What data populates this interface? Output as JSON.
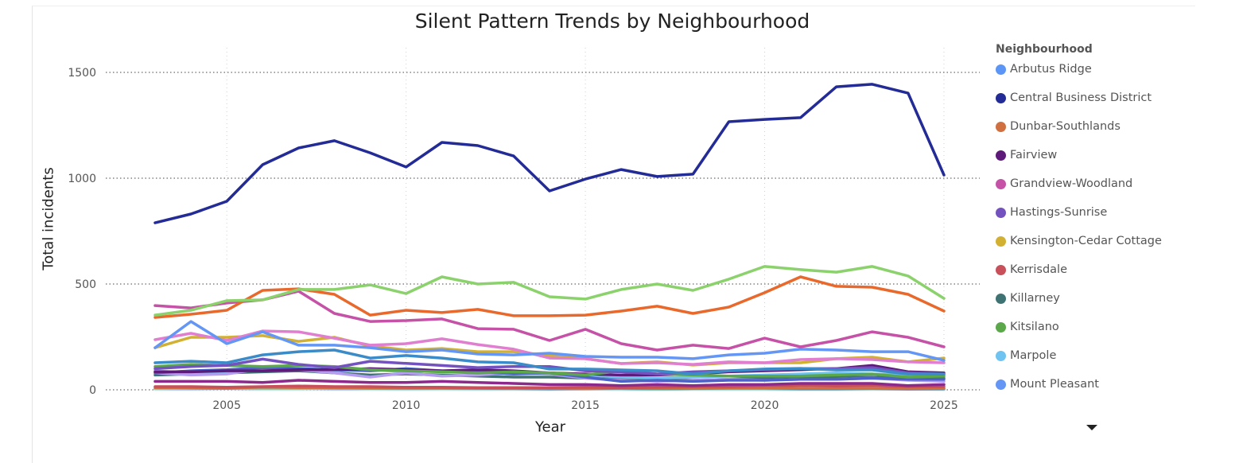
{
  "chart_data": {
    "type": "line",
    "title": "Silent Pattern Trends by Neighbourhood",
    "xlabel": "Year",
    "ylabel": "Total incidents",
    "xlim": [
      2003,
      2025
    ],
    "ylim": [
      0,
      1500
    ],
    "x_ticks": [
      "2005",
      "2010",
      "2015",
      "2020",
      "2025"
    ],
    "y_ticks": [
      "0",
      "500",
      "1000",
      "1500"
    ],
    "grid": true,
    "legend_title": "Neighbourhood",
    "legend_position": "right",
    "x": [
      2003,
      2004,
      2005,
      2006,
      2007,
      2008,
      2009,
      2010,
      2011,
      2012,
      2013,
      2014,
      2015,
      2016,
      2017,
      2018,
      2019,
      2020,
      2021,
      2022,
      2023,
      2024,
      2025
    ],
    "series": [
      {
        "name": "Arbutus Ridge",
        "color": "#5b95f5",
        "values": [
          5,
          5,
          6,
          5,
          6,
          5,
          5,
          4,
          5,
          4,
          4,
          3,
          4,
          4,
          3,
          4,
          4,
          4,
          3,
          3,
          4,
          3,
          3
        ]
      },
      {
        "name": "Central Business District",
        "color": "#232b96",
        "values": [
          789,
          831,
          891,
          1064,
          1143,
          1177,
          1120,
          1053,
          1169,
          1154,
          1105,
          940,
          996,
          1041,
          1008,
          1019,
          1267,
          1278,
          1286,
          1432,
          1444,
          1402,
          1015
        ]
      },
      {
        "name": "Dunbar-Southlands",
        "color": "#d07040",
        "values": [
          10,
          10,
          8,
          12,
          10,
          10,
          8,
          8,
          8,
          7,
          6,
          6,
          5,
          7,
          6,
          6,
          8,
          8,
          6,
          6,
          6,
          5,
          6
        ]
      },
      {
        "name": "Fairview",
        "color": "#5e1a78",
        "values": [
          85,
          85,
          90,
          90,
          95,
          95,
          100,
          95,
          90,
          95,
          90,
          80,
          75,
          70,
          70,
          75,
          85,
          90,
          95,
          100,
          115,
          85,
          80
        ]
      },
      {
        "name": "Grandview-Woodland",
        "color": "#c552a6",
        "values": [
          398,
          387,
          410,
          425,
          466,
          361,
          323,
          327,
          335,
          289,
          286,
          233,
          286,
          218,
          188,
          211,
          195,
          244,
          203,
          233,
          274,
          248,
          203
        ]
      },
      {
        "name": "Hastings-Sunrise",
        "color": "#7352c0",
        "values": [
          100,
          110,
          115,
          145,
          120,
          105,
          135,
          125,
          115,
          105,
          110,
          110,
          90,
          85,
          75,
          85,
          90,
          95,
          100,
          100,
          105,
          80,
          75
        ]
      },
      {
        "name": "Kensington-Cedar Cottage",
        "color": "#d2b031",
        "values": [
          199,
          248,
          248,
          256,
          229,
          248,
          207,
          188,
          195,
          180,
          180,
          162,
          147,
          124,
          132,
          117,
          128,
          128,
          128,
          147,
          154,
          132,
          150
        ]
      },
      {
        "name": "Kerrisdale",
        "color": "#c8505a",
        "values": [
          15,
          15,
          12,
          15,
          18,
          15,
          15,
          12,
          12,
          10,
          10,
          10,
          12,
          10,
          12,
          15,
          15,
          20,
          20,
          18,
          20,
          15,
          15
        ]
      },
      {
        "name": "Killarney",
        "color": "#3f7373",
        "values": [
          70,
          75,
          80,
          85,
          90,
          80,
          70,
          75,
          70,
          65,
          60,
          60,
          55,
          50,
          50,
          45,
          50,
          55,
          55,
          60,
          60,
          55,
          55
        ]
      },
      {
        "name": "Kitsilano",
        "color": "#5aa84a",
        "values": [
          110,
          120,
          115,
          110,
          115,
          110,
          95,
          90,
          85,
          80,
          85,
          80,
          70,
          90,
          75,
          70,
          65,
          65,
          65,
          70,
          75,
          60,
          65
        ]
      },
      {
        "name": "Marpole",
        "color": "#6ec3f0",
        "values": [
          90,
          80,
          85,
          95,
          100,
          90,
          95,
          85,
          90,
          85,
          80,
          80,
          70,
          60,
          55,
          60,
          65,
          70,
          75,
          80,
          75,
          70,
          70
        ]
      },
      {
        "name": "Mount Pleasant",
        "color": "#6496f5",
        "values": [
          199,
          323,
          218,
          274,
          211,
          211,
          199,
          180,
          188,
          169,
          165,
          173,
          158,
          154,
          154,
          147,
          165,
          173,
          192,
          188,
          180,
          180,
          139
        ]
      },
      {
        "color": "#8bd16c",
        "values": [
          353,
          376,
          421,
          425,
          474,
          474,
          496,
          455,
          534,
          500,
          508,
          440,
          429,
          474,
          500,
          470,
          523,
          583,
          568,
          556,
          583,
          538,
          432
        ]
      },
      {
        "color": "#e8692b",
        "values": [
          342,
          357,
          376,
          470,
          477,
          451,
          353,
          376,
          365,
          380,
          350,
          350,
          353,
          372,
          395,
          361,
          391,
          459,
          534,
          489,
          485,
          451,
          372
        ]
      },
      {
        "color": "#e07fcf",
        "values": [
          237,
          267,
          233,
          278,
          274,
          244,
          211,
          218,
          241,
          214,
          192,
          150,
          147,
          124,
          128,
          120,
          132,
          128,
          143,
          147,
          143,
          132,
          128
        ]
      },
      {
        "color": "#3b8bc8",
        "values": [
          128,
          135,
          128,
          165,
          180,
          188,
          150,
          162,
          150,
          132,
          128,
          98,
          98,
          94,
          90,
          75,
          90,
          98,
          101,
          94,
          94,
          75,
          75
        ]
      },
      {
        "color": "#b49cf0",
        "values": [
          80,
          70,
          75,
          100,
          95,
          80,
          60,
          80,
          65,
          70,
          80,
          75,
          55,
          45,
          40,
          45,
          50,
          45,
          50,
          50,
          55,
          45,
          40
        ]
      },
      {
        "color": "#4b63c8",
        "values": [
          80,
          90,
          95,
          105,
          100,
          95,
          90,
          100,
          90,
          85,
          75,
          80,
          60,
          40,
          45,
          40,
          45,
          45,
          50,
          50,
          55,
          50,
          50
        ]
      },
      {
        "color": "#8c2a8c",
        "values": [
          40,
          40,
          40,
          35,
          45,
          40,
          35,
          35,
          40,
          35,
          30,
          25,
          25,
          20,
          25,
          20,
          25,
          25,
          30,
          30,
          30,
          20,
          25
        ]
      },
      {
        "color": "#6ed3b9",
        "values": [
          5,
          8,
          8,
          5,
          5,
          8,
          5,
          5,
          5,
          5,
          5,
          5,
          5,
          5,
          3,
          5,
          5,
          5,
          5,
          5,
          5,
          5,
          5
        ]
      }
    ]
  }
}
